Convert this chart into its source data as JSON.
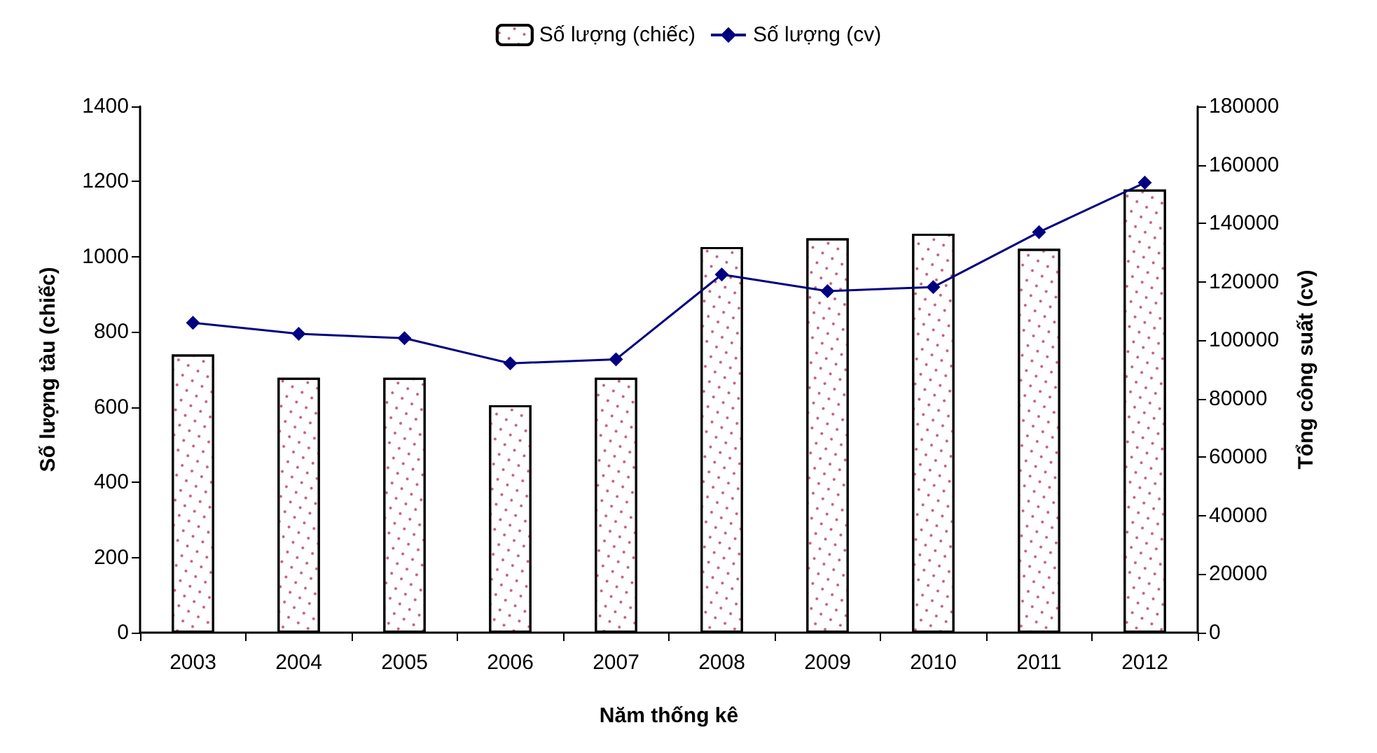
{
  "chart_data": {
    "type": "bar",
    "xlabel": "Năm thống kê",
    "ylabel": "Số lượng tàu (chiếc)",
    "y2label": "Tổng công suất (cv)",
    "categories": [
      "2003",
      "2004",
      "2005",
      "2006",
      "2007",
      "2008",
      "2009",
      "2010",
      "2011",
      "2012"
    ],
    "series": [
      {
        "name": "Số lượng (chiếc)",
        "color": "#ffffff",
        "values": [
          740,
          678,
          678,
          605,
          678,
          1026,
          1049,
          1061,
          1021,
          1179
        ]
      },
      {
        "name": "Số lượng (cv)",
        "type": "line",
        "axis": "y2",
        "color": "#000080",
        "marker": "diamond",
        "values": [
          106000,
          102200,
          100700,
          92100,
          93500,
          122500,
          116800,
          118200,
          137000,
          153900
        ]
      }
    ],
    "ylim": [
      0,
      1400
    ],
    "yticks": [
      0,
      200,
      400,
      600,
      800,
      1000,
      1200,
      1400
    ],
    "y2lim": [
      0,
      180000
    ],
    "y2ticks": [
      0,
      20000,
      40000,
      60000,
      80000,
      100000,
      120000,
      140000,
      160000,
      180000
    ],
    "grid": false,
    "legend": "top"
  }
}
